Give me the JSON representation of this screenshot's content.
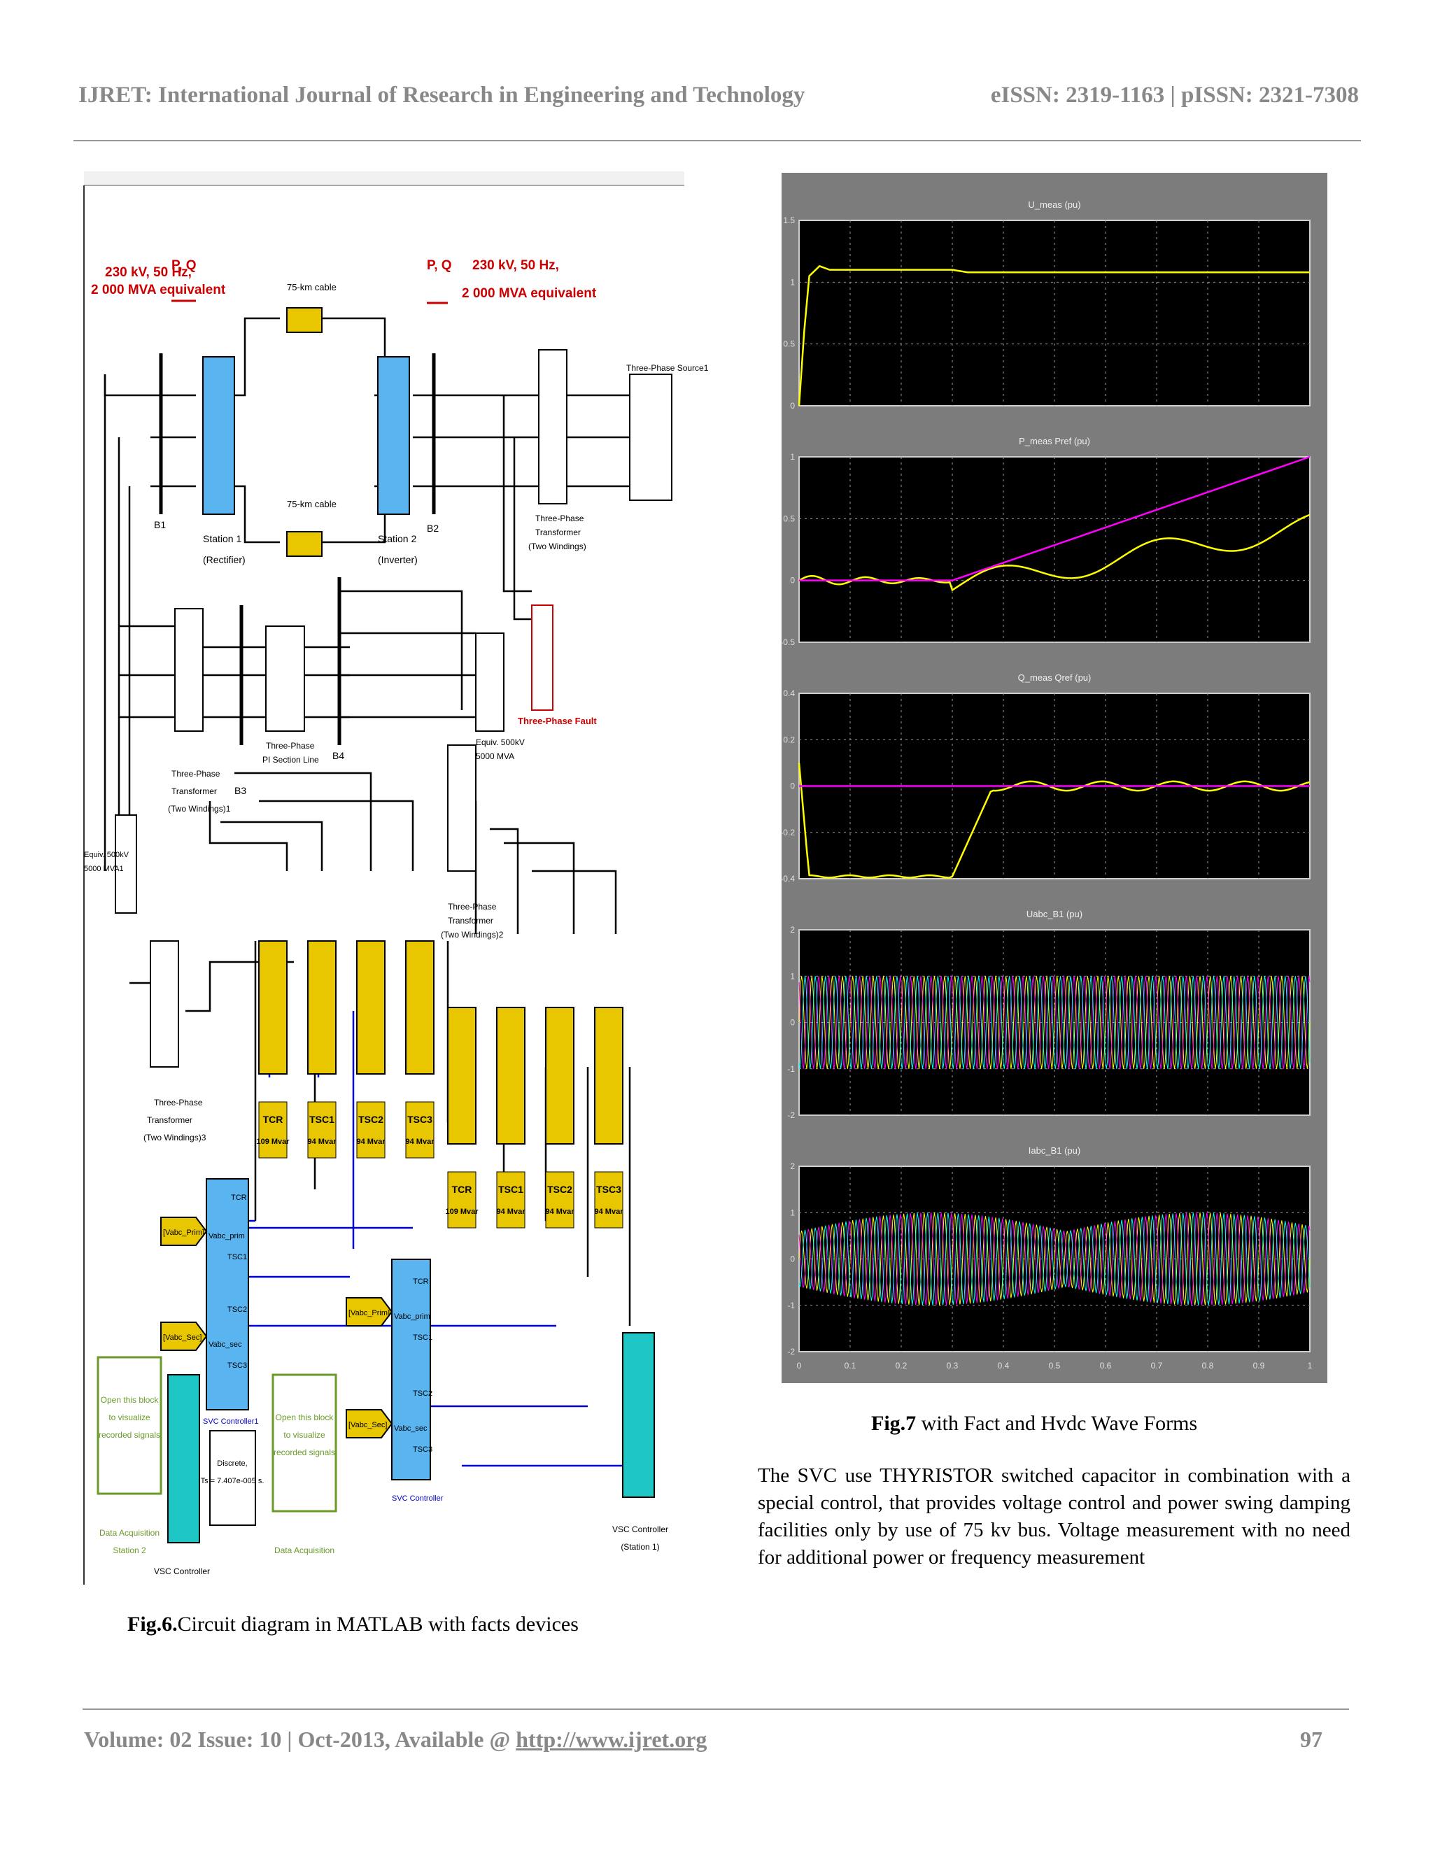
{
  "header": {
    "journal": "IJRET: International Journal of Research in Engineering and Technology",
    "issn": "eISSN: 2319-1163 | pISSN: 2321-7308"
  },
  "figure6": {
    "caption_num": "Fig.6.",
    "caption_text": "Circuit diagram in MATLAB with facts devices",
    "labels": {
      "src_left_1": "230 kV, 50 Hz,",
      "src_left_2": "2 000 MVA equivalent",
      "pq_left": "P, Q",
      "src_right_1": "230 kV, 50 Hz,",
      "src_right_2": "2 000 MVA equivalent",
      "pq_right": "P, Q",
      "cable_top": "75-km cable",
      "cable_bottom": "75-km cable",
      "station1": "Station 1",
      "station1_sub": "(Rectifier)",
      "station2": "Station 2",
      "station2_sub": "(Inverter)",
      "b1": "B1",
      "b2": "B2",
      "b3": "B3",
      "b4": "B4",
      "source1": "Three-Phase Source1",
      "xfmr_right_1": "Three-Phase",
      "xfmr_right_2": "Transformer",
      "xfmr_right_3": "(Two Windings)",
      "fault": "Three-Phase Fault",
      "pi_line_1": "Three-Phase",
      "pi_line_2": "PI Section Line",
      "equiv_right_1": "Equiv. 500kV",
      "equiv_right_2": "5000 MVA",
      "equiv_left_1": "Equiv. 500kV",
      "equiv_left_2": "5000 MVA1",
      "xfmr1_1": "Three-Phase",
      "xfmr1_2": "Transformer",
      "xfmr1_3": "(Two Windings)1",
      "xfmr2_1": "Three-Phase",
      "xfmr2_2": "Transformer",
      "xfmr2_3": "(Two Windings)2",
      "xfmr3_1": "Three-Phase",
      "xfmr3_2": "Transformer",
      "xfmr3_3": "(Two Windings)3",
      "svc1": "SVC Controller1",
      "svc2": "SVC Controller",
      "vabc_prim": "[Vabc_Prim]",
      "vabc_sec": "[Vabc_Sec]",
      "vabc_prim2": "[Vabc_Prim]",
      "vabc_sec2": "[Vabc_Sec]",
      "port_prim": "Vabc_prim",
      "port_sec": "Vabc_sec",
      "port_tcr": "TCR",
      "port_tsc1": "TSC1",
      "port_tsc2": "TSC2",
      "port_tsc3": "TSC3",
      "discrete_1": "Discrete,",
      "discrete_2": "Ts = 7.407e-005 s.",
      "open_1": "Open this block",
      "open_2": "to visualize",
      "open_3": "recorded signals",
      "data_acq2_1": "Data Acquisition",
      "data_acq2_2": "Station 2",
      "data_acq": "Data Acquisition",
      "vsc_left": "VSC Controller",
      "vsc_right_1": "VSC Controller",
      "vsc_right_2": "(Station 1)"
    },
    "banks_top": [
      {
        "name": "TCR",
        "rating": "109 Mvar"
      },
      {
        "name": "TSC1",
        "rating": "94 Mvar"
      },
      {
        "name": "TSC2",
        "rating": "94 Mvar"
      },
      {
        "name": "TSC3",
        "rating": "94 Mvar"
      }
    ],
    "banks_bottom": [
      {
        "name": "TCR",
        "rating": "109 Mvar"
      },
      {
        "name": "TSC1",
        "rating": "94 Mvar"
      },
      {
        "name": "TSC2",
        "rating": "94 Mvar"
      },
      {
        "name": "TSC3",
        "rating": "94 Mvar"
      }
    ]
  },
  "figure7": {
    "caption_num": "Fig.7",
    "caption_text": " with Fact and Hvdc Wave Forms",
    "x_ticks": [
      "0",
      "0.1",
      "0.2",
      "0.3",
      "0.4",
      "0.5",
      "0.6",
      "0.7",
      "0.8",
      "0.9",
      "1"
    ],
    "panels": [
      {
        "title": "U_meas (pu)",
        "y_ticks": [
          "1.5",
          "1",
          "0.5",
          "0"
        ]
      },
      {
        "title": "P_meas  Pref (pu)",
        "y_ticks": [
          "1",
          "0.5",
          "0",
          "-0.5"
        ]
      },
      {
        "title": "Q_meas  Qref (pu)",
        "y_ticks": [
          "0.4",
          "0.2",
          "0",
          "-0.2",
          "-0.4"
        ]
      },
      {
        "title": "Uabc_B1 (pu)",
        "y_ticks": [
          "2",
          "1",
          "0",
          "-1",
          "-2"
        ]
      },
      {
        "title": "Iabc_B1 (pu)",
        "y_ticks": [
          "2",
          "1",
          "0",
          "-1",
          "-2"
        ]
      }
    ],
    "colors": {
      "yellow": "#ffff00",
      "magenta": "#ff00ff",
      "grid": "#9a9a9a",
      "bg": "#000000"
    }
  },
  "paragraph": "The SVC use THYRISTOR switched capacitor in combination with a special control, that provides voltage control and power swing damping facilities only by use of 75 kv bus. Voltage measurement with no need for additional power or frequency measurement",
  "footer": {
    "left": "Volume: 02 Issue: 10 | Oct-2013, Available @ ",
    "link": "http://www.ijret.org",
    "page": "97"
  }
}
